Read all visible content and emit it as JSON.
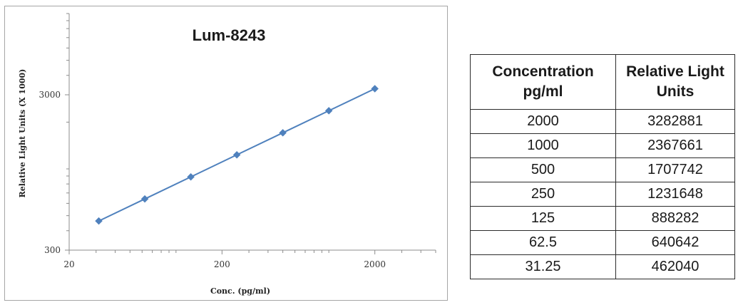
{
  "chart_data": {
    "type": "line",
    "title": "Lum-8243",
    "xlabel": "Conc. (pg/ml)",
    "ylabel": "Relative Light Units (X 1000)",
    "x_scale": "log",
    "y_scale": "log",
    "xlim": [
      20,
      5000
    ],
    "ylim": [
      300,
      10000
    ],
    "x_ticks": [
      "20",
      "200",
      "2000"
    ],
    "y_ticks": [
      "300",
      "3000"
    ],
    "grid": false,
    "legend": "none",
    "series": [
      {
        "color": "#4f81bd",
        "marker": "diamond",
        "x": [
          31.25,
          62.5,
          125,
          250,
          500,
          1000,
          2000
        ],
        "y": [
          462.04,
          640.642,
          888.282,
          1231.648,
          1707.742,
          2367.661,
          3282.881
        ]
      }
    ]
  },
  "table": {
    "headers": [
      [
        "Concentration",
        "pg/ml"
      ],
      [
        "Relative Light",
        "Units"
      ]
    ],
    "rows": [
      [
        "2000",
        "3282881"
      ],
      [
        "1000",
        "2367661"
      ],
      [
        "500",
        "1707742"
      ],
      [
        "250",
        "1231648"
      ],
      [
        "125",
        "888282"
      ],
      [
        "62.5",
        "640642"
      ],
      [
        "31.25",
        "462040"
      ]
    ]
  }
}
